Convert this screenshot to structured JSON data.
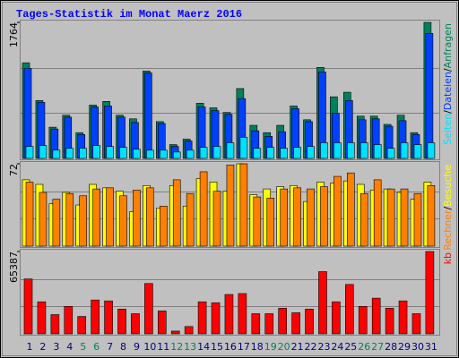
{
  "title": "Tages-Statistik im Monat Maerz 2016",
  "legend_separator": "/",
  "chart_data": [
    {
      "type": "bar",
      "ylim": [
        0,
        1764
      ],
      "yticks": [
        1764
      ],
      "series": [
        {
          "name": "Anfragen",
          "color": "#00805c",
          "values": [
            1240,
            751,
            405,
            560,
            334,
            691,
            739,
            560,
            513,
            1132,
            477,
            179,
            250,
            715,
            656,
            596,
            906,
            429,
            334,
            429,
            679,
            501,
            1180,
            799,
            858,
            548,
            548,
            441,
            560,
            334,
            1764
          ]
        },
        {
          "name": "Dateien",
          "color": "#0040ff",
          "values": [
            1168,
            727,
            381,
            536,
            310,
            667,
            679,
            536,
            465,
            1108,
            453,
            155,
            226,
            667,
            620,
            572,
            775,
            358,
            286,
            346,
            644,
            477,
            1120,
            584,
            751,
            501,
            513,
            417,
            489,
            310,
            1621
          ]
        },
        {
          "name": "Seiten",
          "color": "#00e0ff",
          "values": [
            155,
            167,
            107,
            131,
            131,
            167,
            155,
            143,
            119,
            107,
            107,
            83,
            107,
            143,
            155,
            203,
            274,
            131,
            143,
            131,
            143,
            155,
            203,
            203,
            203,
            203,
            179,
            131,
            203,
            179,
            203
          ]
        }
      ]
    },
    {
      "type": "bar",
      "ylim": [
        0,
        72
      ],
      "yticks": [
        72
      ],
      "series": [
        {
          "name": "Besuche",
          "color": "#ffff00",
          "values": [
            58,
            54,
            37,
            47,
            36,
            54,
            51,
            48,
            30,
            53,
            33,
            53,
            35,
            59,
            56,
            48,
            72,
            45,
            50,
            52,
            53,
            39,
            56,
            55,
            57,
            54,
            49,
            50,
            47,
            41,
            56
          ]
        },
        {
          "name": "Rechner",
          "color": "#ff8000",
          "values": [
            56,
            47,
            41,
            46,
            44,
            50,
            51,
            44,
            49,
            51,
            35,
            58,
            46,
            65,
            48,
            71,
            72,
            43,
            42,
            50,
            51,
            50,
            52,
            61,
            64,
            46,
            58,
            50,
            50,
            46,
            53
          ]
        }
      ]
    },
    {
      "type": "bar",
      "ylim": [
        0,
        65387
      ],
      "yticks": [
        65387
      ],
      "categories": [
        "1",
        "2",
        "3",
        "4",
        "5",
        "6",
        "7",
        "8",
        "9",
        "10",
        "11",
        "12",
        "13",
        "14",
        "15",
        "16",
        "17",
        "18",
        "19",
        "20",
        "21",
        "22",
        "23",
        "24",
        "25",
        "26",
        "27",
        "28",
        "29",
        "30",
        "31"
      ],
      "category_colors": [
        "#000080",
        "#000080",
        "#000080",
        "#000080",
        "#00805c",
        "#00805c",
        "#000080",
        "#000080",
        "#000080",
        "#000080",
        "#000080",
        "#00805c",
        "#00805c",
        "#000080",
        "#000080",
        "#000080",
        "#000080",
        "#000080",
        "#00805c",
        "#00805c",
        "#000080",
        "#000080",
        "#000080",
        "#000080",
        "#000080",
        "#00805c",
        "#00805c",
        "#000080",
        "#000080",
        "#000080",
        "#000080"
      ],
      "series": [
        {
          "name": "kb",
          "color": "#ff0000",
          "values": [
            43592,
            25428,
            15257,
            21796,
            13804,
            26881,
            26155,
            19616,
            15984,
            39959,
            18163,
            2180,
            5812,
            25428,
            24702,
            31240,
            31967,
            15984,
            15984,
            20342,
            16710,
            19616,
            49404,
            25428,
            39232,
            21796,
            28334,
            20342,
            26155,
            15984,
            65387
          ]
        }
      ]
    }
  ]
}
